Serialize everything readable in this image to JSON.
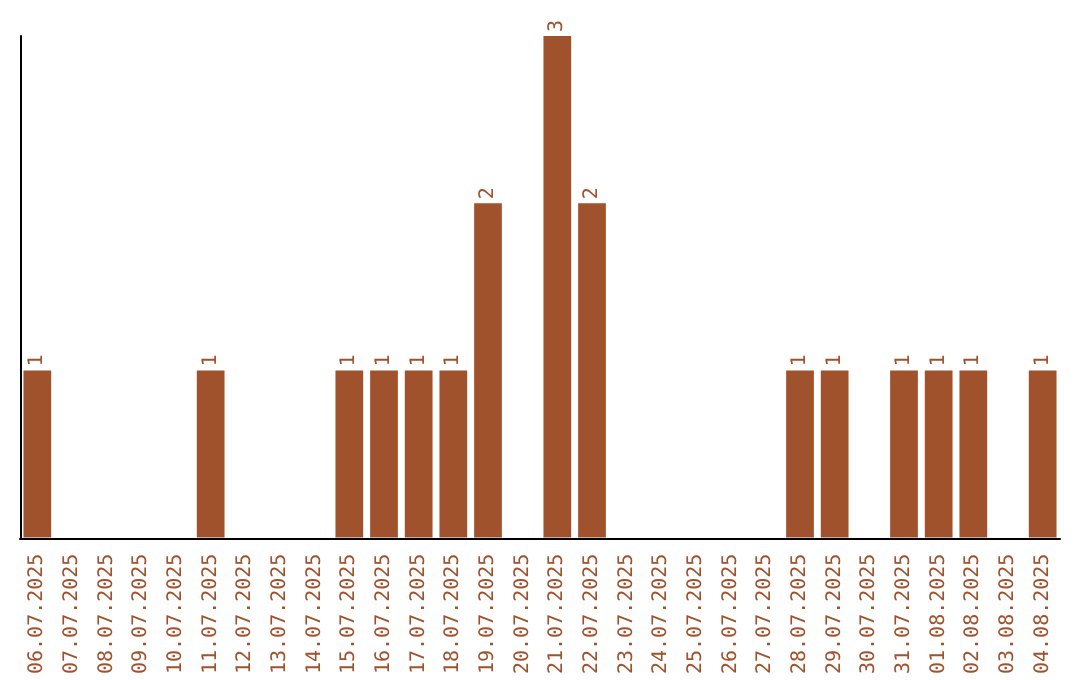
{
  "chart_data": {
    "type": "bar",
    "categories": [
      "06.07.2025",
      "07.07.2025",
      "08.07.2025",
      "09.07.2025",
      "10.07.2025",
      "11.07.2025",
      "12.07.2025",
      "13.07.2025",
      "14.07.2025",
      "15.07.2025",
      "16.07.2025",
      "17.07.2025",
      "18.07.2025",
      "19.07.2025",
      "20.07.2025",
      "21.07.2025",
      "22.07.2025",
      "23.07.2025",
      "24.07.2025",
      "25.07.2025",
      "26.07.2025",
      "27.07.2025",
      "28.07.2025",
      "29.07.2025",
      "30.07.2025",
      "31.07.2025",
      "01.08.2025",
      "02.08.2025",
      "03.08.2025",
      "04.08.2025"
    ],
    "values": [
      1,
      0,
      0,
      0,
      0,
      1,
      0,
      0,
      0,
      1,
      1,
      1,
      1,
      2,
      0,
      3,
      2,
      0,
      0,
      0,
      0,
      0,
      1,
      1,
      0,
      1,
      1,
      1,
      0,
      1
    ],
    "value_labels": [
      "1",
      null,
      null,
      null,
      null,
      "1",
      null,
      null,
      null,
      "1",
      "1",
      "1",
      "1",
      "2",
      null,
      "3",
      "2",
      null,
      null,
      null,
      null,
      null,
      "1",
      "1",
      null,
      "1",
      "1",
      "1",
      null,
      "1"
    ],
    "color": "#a0522d"
  }
}
